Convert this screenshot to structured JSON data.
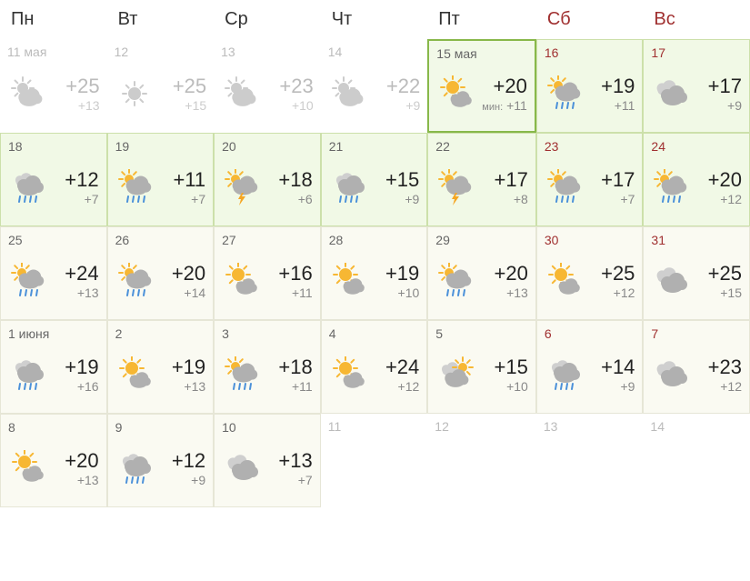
{
  "headers": [
    {
      "label": "Пн",
      "weekend": false
    },
    {
      "label": "Вт",
      "weekend": false
    },
    {
      "label": "Ср",
      "weekend": false
    },
    {
      "label": "Чт",
      "weekend": false
    },
    {
      "label": "Пт",
      "weekend": false
    },
    {
      "label": "Сб",
      "weekend": true
    },
    {
      "label": "Вс",
      "weekend": true
    }
  ],
  "days": [
    {
      "date": "11 мая",
      "high": "+25",
      "low": "+13",
      "icon": "partly",
      "state": "past",
      "weekend": false
    },
    {
      "date": "12",
      "high": "+25",
      "low": "+15",
      "icon": "sunny",
      "state": "past",
      "weekend": false
    },
    {
      "date": "13",
      "high": "+23",
      "low": "+10",
      "icon": "partly",
      "state": "past",
      "weekend": false
    },
    {
      "date": "14",
      "high": "+22",
      "low": "+9",
      "icon": "partly",
      "state": "past",
      "weekend": false
    },
    {
      "date": "15 мая",
      "high": "+20",
      "low": "+11",
      "lowLabel": "мин:",
      "icon": "mostly-sunny",
      "state": "current",
      "weekend": false
    },
    {
      "date": "16",
      "high": "+19",
      "low": "+11",
      "icon": "rain-sun",
      "state": "near",
      "weekend": true
    },
    {
      "date": "17",
      "high": "+17",
      "low": "+9",
      "icon": "cloudy",
      "state": "near",
      "weekend": true
    },
    {
      "date": "18",
      "high": "+12",
      "low": "+7",
      "icon": "rain",
      "state": "near",
      "weekend": false
    },
    {
      "date": "19",
      "high": "+11",
      "low": "+7",
      "icon": "rain-sun",
      "state": "near",
      "weekend": false
    },
    {
      "date": "20",
      "high": "+18",
      "low": "+6",
      "icon": "storm",
      "state": "near",
      "weekend": false
    },
    {
      "date": "21",
      "high": "+15",
      "low": "+9",
      "icon": "rain",
      "state": "near",
      "weekend": false
    },
    {
      "date": "22",
      "high": "+17",
      "low": "+8",
      "icon": "storm",
      "state": "near",
      "weekend": false
    },
    {
      "date": "23",
      "high": "+17",
      "low": "+7",
      "icon": "rain-sun",
      "state": "near",
      "weekend": true
    },
    {
      "date": "24",
      "high": "+20",
      "low": "+12",
      "icon": "rain-sun",
      "state": "near",
      "weekend": true
    },
    {
      "date": "25",
      "high": "+24",
      "low": "+13",
      "icon": "rain-sun",
      "state": "normal",
      "weekend": false
    },
    {
      "date": "26",
      "high": "+20",
      "low": "+14",
      "icon": "rain-sun",
      "state": "normal",
      "weekend": false
    },
    {
      "date": "27",
      "high": "+16",
      "low": "+11",
      "icon": "mostly-sunny",
      "state": "normal",
      "weekend": false
    },
    {
      "date": "28",
      "high": "+19",
      "low": "+10",
      "icon": "mostly-sunny",
      "state": "normal",
      "weekend": false
    },
    {
      "date": "29",
      "high": "+20",
      "low": "+13",
      "icon": "rain-sun",
      "state": "normal",
      "weekend": false
    },
    {
      "date": "30",
      "high": "+25",
      "low": "+12",
      "icon": "mostly-sunny",
      "state": "normal",
      "weekend": true
    },
    {
      "date": "31",
      "high": "+25",
      "low": "+15",
      "icon": "cloudy",
      "state": "normal",
      "weekend": true
    },
    {
      "date": "1 июня",
      "high": "+19",
      "low": "+16",
      "icon": "rain",
      "state": "normal",
      "weekend": false
    },
    {
      "date": "2",
      "high": "+19",
      "low": "+13",
      "icon": "mostly-sunny",
      "state": "normal",
      "weekend": false
    },
    {
      "date": "3",
      "high": "+18",
      "low": "+11",
      "icon": "rain-sun",
      "state": "normal",
      "weekend": false
    },
    {
      "date": "4",
      "high": "+24",
      "low": "+12",
      "icon": "mostly-sunny",
      "state": "normal",
      "weekend": false
    },
    {
      "date": "5",
      "high": "+15",
      "low": "+10",
      "icon": "partly-cloud",
      "state": "normal",
      "weekend": false
    },
    {
      "date": "6",
      "high": "+14",
      "low": "+9",
      "icon": "rain",
      "state": "normal",
      "weekend": true
    },
    {
      "date": "7",
      "high": "+23",
      "low": "+12",
      "icon": "cloudy",
      "state": "normal",
      "weekend": true
    },
    {
      "date": "8",
      "high": "+20",
      "low": "+13",
      "icon": "mostly-sunny",
      "state": "normal",
      "weekend": false
    },
    {
      "date": "9",
      "high": "+12",
      "low": "+9",
      "icon": "rain",
      "state": "normal",
      "weekend": false
    },
    {
      "date": "10",
      "high": "+13",
      "low": "+7",
      "icon": "cloudy",
      "state": "normal",
      "weekend": false
    },
    {
      "date": "11",
      "state": "future",
      "weekend": false
    },
    {
      "date": "12",
      "state": "future",
      "weekend": false
    },
    {
      "date": "13",
      "state": "future",
      "weekend": true
    },
    {
      "date": "14",
      "state": "future",
      "weekend": true
    }
  ],
  "colors": {
    "sun": "#f7b733",
    "cloud": "#b0b0b0",
    "cloud_light": "#cfcfcf",
    "rain": "#4a90d9",
    "storm": "#f5a623",
    "past": "#cccccc"
  }
}
